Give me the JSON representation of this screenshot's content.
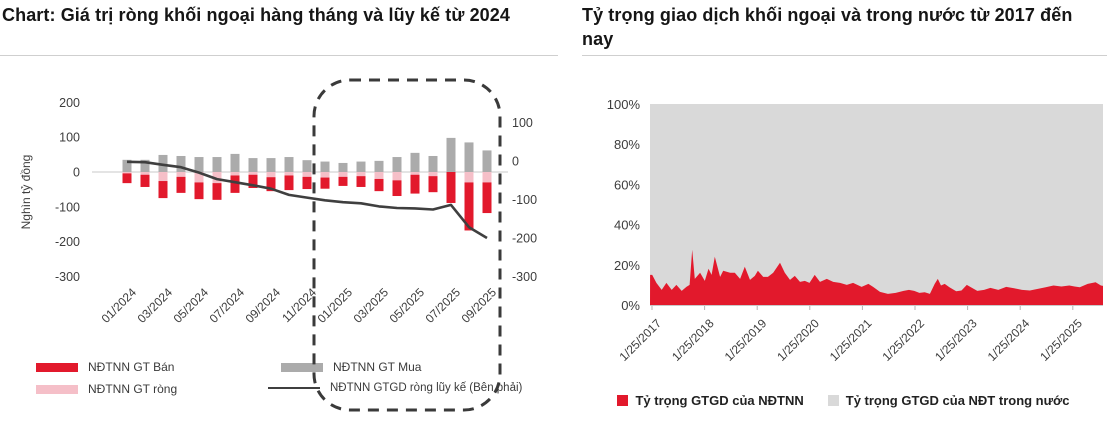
{
  "colors": {
    "red": "#E2192C",
    "pink": "#F5BFC8",
    "gray_bar": "#ABABAB",
    "area_gray": "#D9D9D9",
    "line_dark": "#3F3F3F",
    "dashed_box": "#3A3A3A",
    "axis_text": "#3D3D3D",
    "gridline": "#DCDCDC"
  },
  "left_panel": {
    "title": "Chart: Giá trị ròng khối ngoại hàng tháng và lũy kế từ 2024",
    "legend": {
      "ban": "NĐTNN GT Bán",
      "mua": "NĐTNN GT Mua",
      "rong": "NĐTNN GT ròng",
      "luyke": "NĐTNN GTGD ròng lũy kế (Bên phải)"
    }
  },
  "right_panel": {
    "title": "Tỷ trọng giao dịch khối ngoại và trong nước từ 2017 đến nay",
    "legend": {
      "foreign": "Tỷ trọng GTGD của NĐTNN",
      "domestic": "Tỷ trọng GTGD của NĐT trong nước"
    }
  },
  "chart_data": [
    {
      "id": "net-foreign-monthly-and-cumulative",
      "type": "bar",
      "title": "Chart: Giá trị ròng khối ngoại hàng tháng và lũy kế từ 2024",
      "ylabel_left": "Nghìn tỷ đồng",
      "y_ticks_left": [
        200,
        100,
        0,
        -100,
        -200,
        -300
      ],
      "y_ticks_right": [
        100,
        0,
        -100,
        -200,
        -300
      ],
      "ylim_left": [
        -300,
        200
      ],
      "ylim_right": [
        -300,
        100
      ],
      "grid": "zero-line-only",
      "highlight_box_range": [
        "01/2025",
        "09/2025"
      ],
      "categories": [
        "01/2024",
        "02/2024",
        "03/2024",
        "04/2024",
        "05/2024",
        "06/2024",
        "07/2024",
        "08/2024",
        "09/2024",
        "10/2024",
        "11/2024",
        "12/2024",
        "01/2025",
        "02/2025",
        "03/2025",
        "04/2025",
        "05/2025",
        "06/2025",
        "07/2025",
        "08/2025",
        "09/2025"
      ],
      "x_tick_labels": [
        "01/2024",
        "03/2024",
        "05/2024",
        "07/2024",
        "09/2024",
        "11/2024",
        "01/2025",
        "03/2025",
        "05/2025",
        "07/2025",
        "09/2025"
      ],
      "series": [
        {
          "name": "NĐTNN GT Mua",
          "type": "bar",
          "axis": "left",
          "color_key": "gray_bar",
          "values": [
            35,
            35,
            49,
            46,
            43,
            43,
            52,
            40,
            40,
            43,
            34,
            30,
            26,
            30,
            32,
            43,
            55,
            46,
            98,
            85,
            62
          ]
        },
        {
          "name": "NĐTNN GT Bán",
          "type": "bar",
          "axis": "left",
          "color_key": "red",
          "values": [
            -32,
            -43,
            -75,
            -60,
            -78,
            -80,
            -60,
            -46,
            -55,
            -52,
            -49,
            -48,
            -40,
            -43,
            -55,
            -69,
            -62,
            -58,
            -89,
            -168,
            -118
          ]
        },
        {
          "name": "NĐTNN GT ròng",
          "type": "bar-overlay",
          "axis": "left",
          "color_key": "pink",
          "values": [
            -4,
            -8,
            -26,
            -14,
            -30,
            -32,
            -10,
            -8,
            -15,
            -10,
            -14,
            -16,
            -14,
            -12,
            -20,
            -24,
            -8,
            -12,
            8,
            -30,
            -30
          ]
        },
        {
          "name": "NĐTNN GTGD ròng lũy kế (Bên phải)",
          "type": "line",
          "axis": "right",
          "color_key": "line_dark",
          "values": [
            -2,
            -3,
            -10,
            -16,
            -30,
            -47,
            -55,
            -63,
            -72,
            -88,
            -95,
            -102,
            -107,
            -110,
            -118,
            -122,
            -123,
            -126,
            -114,
            -172,
            -200
          ]
        }
      ]
    },
    {
      "id": "foreign-vs-domestic-trading-share",
      "type": "area",
      "title": "Tỷ trọng giao dịch khối ngoại và trong nước từ 2017 đến nay",
      "stacked_to": 100,
      "ylim": [
        0,
        100
      ],
      "y_tick_labels": [
        "0%",
        "20%",
        "40%",
        "60%",
        "80%",
        "100%"
      ],
      "y_tick_values": [
        0,
        20,
        40,
        60,
        80,
        100
      ],
      "x_tick_labels": [
        "1/25/2017",
        "1/25/2018",
        "1/25/2019",
        "1/25/2020",
        "1/25/2021",
        "1/25/2022",
        "1/25/2023",
        "1/25/2024",
        "1/25/2025"
      ],
      "series": [
        {
          "name": "Tỷ trọng GTGD của NĐTNN",
          "color_key": "red",
          "unit": "%",
          "points": [
            [
              2017.03,
              15
            ],
            [
              2017.07,
              15
            ],
            [
              2017.15,
              11
            ],
            [
              2017.25,
              7.5
            ],
            [
              2017.34,
              11
            ],
            [
              2017.44,
              7.5
            ],
            [
              2017.53,
              10
            ],
            [
              2017.63,
              7
            ],
            [
              2017.72,
              9
            ],
            [
              2017.78,
              10
            ],
            [
              2017.83,
              27.5
            ],
            [
              2017.88,
              13
            ],
            [
              2017.98,
              16
            ],
            [
              2018.07,
              12
            ],
            [
              2018.14,
              18
            ],
            [
              2018.2,
              15
            ],
            [
              2018.26,
              24
            ],
            [
              2018.36,
              14
            ],
            [
              2018.42,
              17
            ],
            [
              2018.55,
              16
            ],
            [
              2018.64,
              16
            ],
            [
              2018.74,
              13
            ],
            [
              2018.83,
              19
            ],
            [
              2018.93,
              12.5
            ],
            [
              2019.02,
              14.5
            ],
            [
              2019.08,
              17
            ],
            [
              2019.18,
              14
            ],
            [
              2019.27,
              14
            ],
            [
              2019.37,
              16
            ],
            [
              2019.5,
              21
            ],
            [
              2019.59,
              16
            ],
            [
              2019.69,
              12.5
            ],
            [
              2019.78,
              14.5
            ],
            [
              2019.88,
              11.5
            ],
            [
              2019.97,
              12
            ],
            [
              2020.06,
              11
            ],
            [
              2020.16,
              15
            ],
            [
              2020.26,
              11.5
            ],
            [
              2020.39,
              13
            ],
            [
              2020.51,
              11.5
            ],
            [
              2020.64,
              11
            ],
            [
              2020.77,
              10
            ],
            [
              2020.89,
              11
            ],
            [
              2021.05,
              9
            ],
            [
              2021.18,
              10.5
            ],
            [
              2021.27,
              9
            ],
            [
              2021.4,
              6.5
            ],
            [
              2021.55,
              5.5
            ],
            [
              2021.7,
              6
            ],
            [
              2021.85,
              7
            ],
            [
              2021.95,
              7.5
            ],
            [
              2022.05,
              7
            ],
            [
              2022.15,
              6
            ],
            [
              2022.25,
              6.3
            ],
            [
              2022.35,
              5.5
            ],
            [
              2022.44,
              10.5
            ],
            [
              2022.5,
              13
            ],
            [
              2022.56,
              9.7
            ],
            [
              2022.63,
              10.5
            ],
            [
              2022.72,
              8.8
            ],
            [
              2022.85,
              6.8
            ],
            [
              2022.95,
              7.2
            ],
            [
              2023.05,
              10
            ],
            [
              2023.15,
              8.5
            ],
            [
              2023.25,
              7
            ],
            [
              2023.38,
              7.5
            ],
            [
              2023.5,
              8.5
            ],
            [
              2023.65,
              7.5
            ],
            [
              2023.8,
              9
            ],
            [
              2023.95,
              8.3
            ],
            [
              2024.1,
              7.5
            ],
            [
              2024.25,
              7.2
            ],
            [
              2024.4,
              8
            ],
            [
              2024.55,
              8.8
            ],
            [
              2024.7,
              9.7
            ],
            [
              2024.85,
              9.2
            ],
            [
              2025.0,
              9.7
            ],
            [
              2025.1,
              9.2
            ],
            [
              2025.2,
              8.8
            ],
            [
              2025.35,
              10.5
            ],
            [
              2025.5,
              11.3
            ],
            [
              2025.6,
              9.7
            ],
            [
              2025.64,
              9.5
            ]
          ]
        },
        {
          "name": "Tỷ trọng GTGD của NĐT trong nước",
          "color_key": "area_gray",
          "unit": "%",
          "fill": "remainder-to-100"
        }
      ]
    }
  ]
}
